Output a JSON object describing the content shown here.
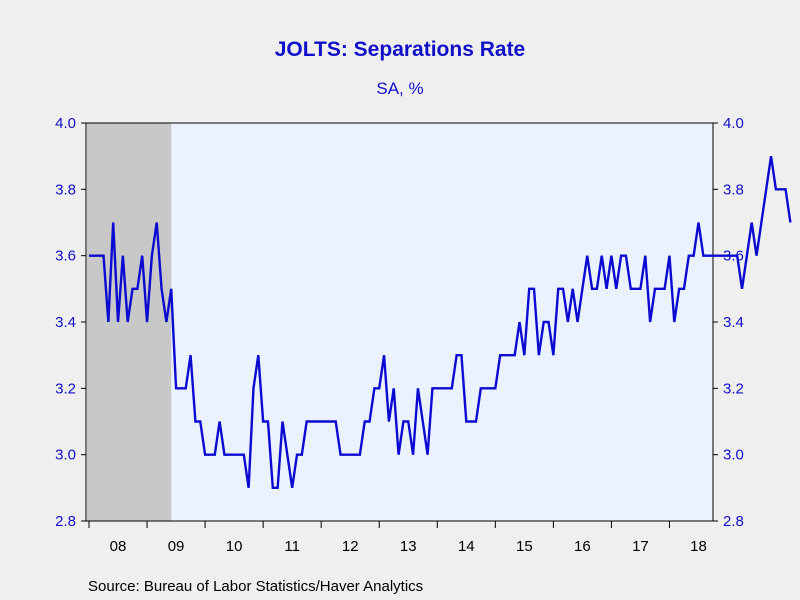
{
  "chart_data": {
    "type": "line",
    "title": "JOLTS: Separations Rate",
    "subtitle": "SA, %",
    "source": "Source:  Bureau of Labor Statistics/Haver Analytics",
    "ylim": [
      2.8,
      4.0
    ],
    "yticks": [
      "4.0",
      "3.8",
      "3.6",
      "3.4",
      "3.2",
      "3.0",
      "2.8"
    ],
    "x_start": "2008-01",
    "x_end": "2018-10",
    "xtick_labels": [
      "08",
      "09",
      "10",
      "11",
      "12",
      "13",
      "14",
      "15",
      "16",
      "17",
      "18"
    ],
    "recession": {
      "start": "2008-01",
      "end": "2009-06"
    },
    "colors": {
      "line": "#0a0ad0",
      "plot_background": "#eaf2ff",
      "recession_shade": "#c8c8c8",
      "axis_text": "#1010c8"
    },
    "series": [
      {
        "values": [
          3.6,
          3.6,
          3.6,
          3.6,
          3.4,
          3.7,
          3.4,
          3.6,
          3.4,
          3.5,
          3.5,
          3.6,
          3.4,
          3.6,
          3.7,
          3.5,
          3.4,
          3.5,
          3.2,
          3.2,
          3.2,
          3.3,
          3.1,
          3.1,
          3.0,
          3.0,
          3.0,
          3.1,
          3.0,
          3.0,
          3.0,
          3.0,
          3.0,
          2.9,
          3.2,
          3.3,
          3.1,
          3.1,
          2.9,
          2.9,
          3.1,
          3.0,
          2.9,
          3.0,
          3.0,
          3.1,
          3.1,
          3.1,
          3.1,
          3.1,
          3.1,
          3.1,
          3.0,
          3.0,
          3.0,
          3.0,
          3.0,
          3.1,
          3.1,
          3.2,
          3.2,
          3.3,
          3.1,
          3.2,
          3.0,
          3.1,
          3.1,
          3.0,
          3.2,
          3.1,
          3.0,
          3.2,
          3.2,
          3.2,
          3.2,
          3.2,
          3.3,
          3.3,
          3.1,
          3.1,
          3.1,
          3.2,
          3.2,
          3.2,
          3.2,
          3.3,
          3.3,
          3.3,
          3.3,
          3.4,
          3.3,
          3.5,
          3.5,
          3.3,
          3.4,
          3.4,
          3.3,
          3.5,
          3.5,
          3.4,
          3.5,
          3.4,
          3.5,
          3.6,
          3.5,
          3.5,
          3.6,
          3.5,
          3.6,
          3.5,
          3.6,
          3.6,
          3.5,
          3.5,
          3.5,
          3.6,
          3.4,
          3.5,
          3.5,
          3.5,
          3.6,
          3.4,
          3.5,
          3.5,
          3.6,
          3.6,
          3.7,
          3.6,
          3.6,
          3.6,
          3.6,
          3.6,
          3.6,
          3.6,
          3.6,
          3.5,
          3.6,
          3.7,
          3.6,
          3.7,
          3.8,
          3.9,
          3.8,
          3.8,
          3.8,
          3.7
        ]
      }
    ]
  }
}
